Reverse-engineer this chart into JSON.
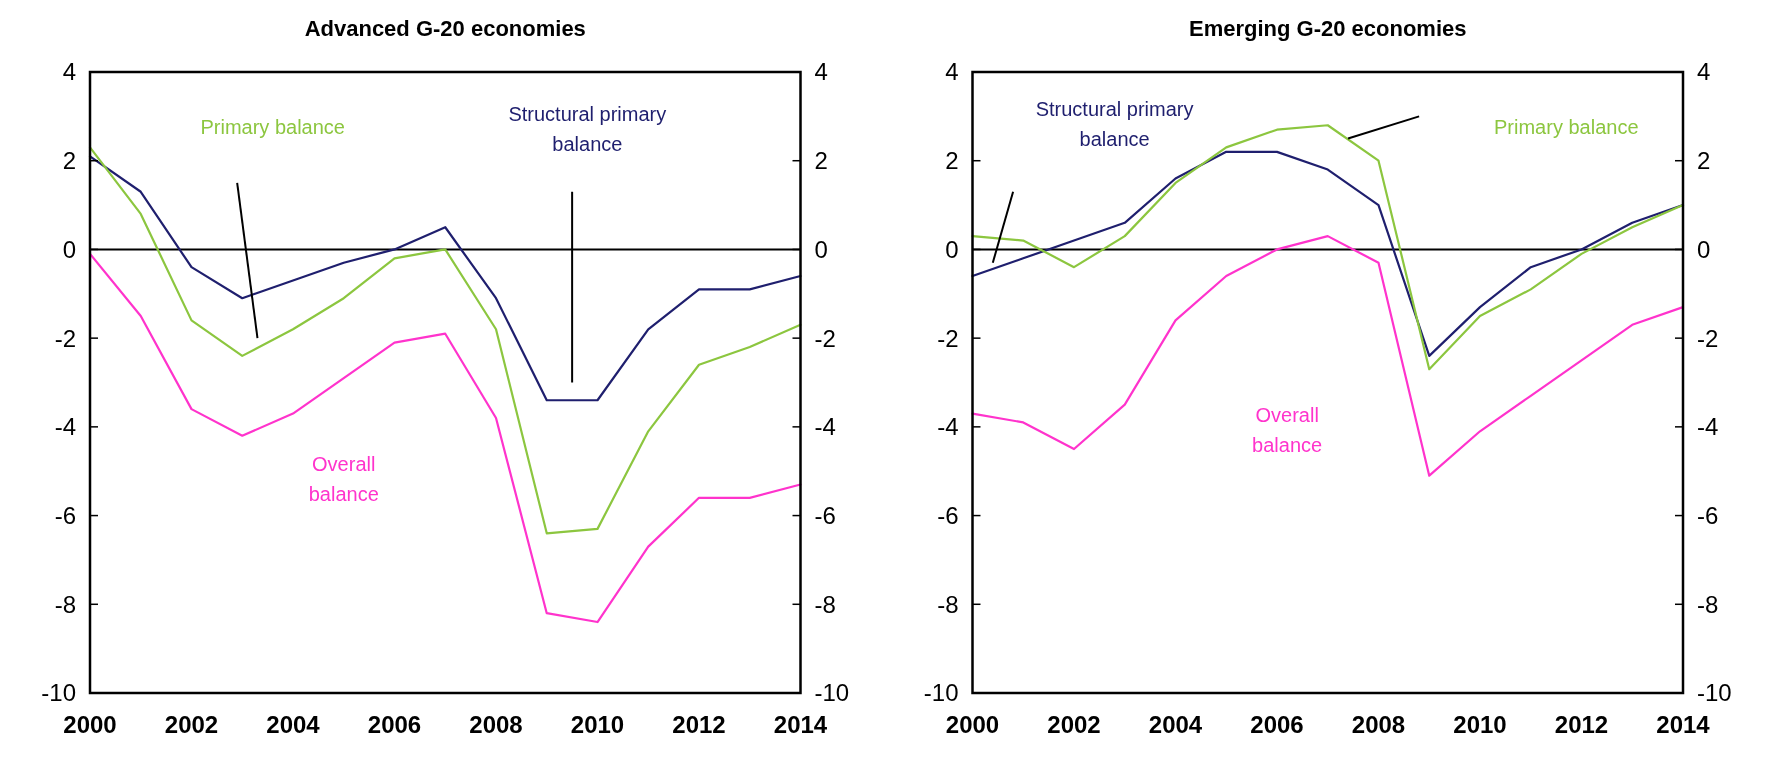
{
  "chart_data": [
    {
      "type": "line",
      "title": "Advanced G-20 economies",
      "x": [
        2000,
        2001,
        2002,
        2003,
        2004,
        2005,
        2006,
        2007,
        2008,
        2009,
        2010,
        2011,
        2012,
        2013,
        2014
      ],
      "xlim": [
        2000,
        2014
      ],
      "xticks": [
        2000,
        2002,
        2004,
        2006,
        2008,
        2010,
        2012,
        2014
      ],
      "ylim": [
        -10,
        4
      ],
      "yticks": [
        -10,
        -8,
        -6,
        -4,
        -2,
        0,
        2,
        4
      ],
      "y2lim": [
        -10,
        4
      ],
      "y2ticks": [
        -10,
        -8,
        -6,
        -4,
        -2,
        0,
        2,
        4
      ],
      "grid": false,
      "ref_lines": [
        {
          "axis": "y",
          "value": 0,
          "color": "#000000"
        }
      ],
      "series": [
        {
          "name": "Structural primary balance",
          "color": "#1f1f6e",
          "values": [
            2.1,
            1.3,
            -0.4,
            -1.1,
            -0.7,
            -0.3,
            0.0,
            0.5,
            -1.1,
            -3.4,
            -3.4,
            -1.8,
            -0.9,
            -0.9,
            -0.6
          ]
        },
        {
          "name": "Primary balance",
          "color": "#8cc63f",
          "values": [
            2.3,
            0.8,
            -1.6,
            -2.4,
            -1.8,
            -1.1,
            -0.2,
            0.0,
            -1.8,
            -6.4,
            -6.3,
            -4.1,
            -2.6,
            -2.2,
            -1.7
          ]
        },
        {
          "name": "Overall balance",
          "color": "#ff33cc",
          "values": [
            -0.1,
            -1.5,
            -3.6,
            -4.2,
            -3.7,
            -2.9,
            -2.1,
            -1.9,
            -3.8,
            -8.2,
            -8.4,
            -6.7,
            -5.6,
            -5.6,
            -5.3
          ]
        }
      ]
    },
    {
      "type": "line",
      "title": "Emerging G-20 economies",
      "x": [
        2000,
        2001,
        2002,
        2003,
        2004,
        2005,
        2006,
        2007,
        2008,
        2009,
        2010,
        2011,
        2012,
        2013,
        2014
      ],
      "xlim": [
        2000,
        2014
      ],
      "xticks": [
        2000,
        2002,
        2004,
        2006,
        2008,
        2010,
        2012,
        2014
      ],
      "ylim": [
        -10,
        4
      ],
      "yticks": [
        -10,
        -8,
        -6,
        -4,
        -2,
        0,
        2,
        4
      ],
      "y2lim": [
        -10,
        4
      ],
      "y2ticks": [
        -10,
        -8,
        -6,
        -4,
        -2,
        0,
        2,
        4
      ],
      "grid": false,
      "ref_lines": [
        {
          "axis": "y",
          "value": 0,
          "color": "#000000"
        }
      ],
      "series": [
        {
          "name": "Structural primary balance",
          "color": "#1f1f6e",
          "values": [
            -0.6,
            -0.2,
            0.2,
            0.6,
            1.6,
            2.2,
            2.2,
            1.8,
            1.0,
            -2.4,
            -1.3,
            -0.4,
            0.0,
            0.6,
            1.0
          ]
        },
        {
          "name": "Primary balance",
          "color": "#8cc63f",
          "values": [
            0.3,
            0.2,
            -0.4,
            0.3,
            1.5,
            2.3,
            2.7,
            2.8,
            2.0,
            -2.7,
            -1.5,
            -0.9,
            -0.1,
            0.5,
            1.0
          ]
        },
        {
          "name": "Overall balance",
          "color": "#ff33cc",
          "values": [
            -3.7,
            -3.9,
            -4.5,
            -3.5,
            -1.6,
            -0.6,
            0.0,
            0.3,
            -0.3,
            -5.1,
            -4.1,
            -3.3,
            -2.5,
            -1.7,
            -1.3
          ]
        }
      ]
    }
  ]
}
